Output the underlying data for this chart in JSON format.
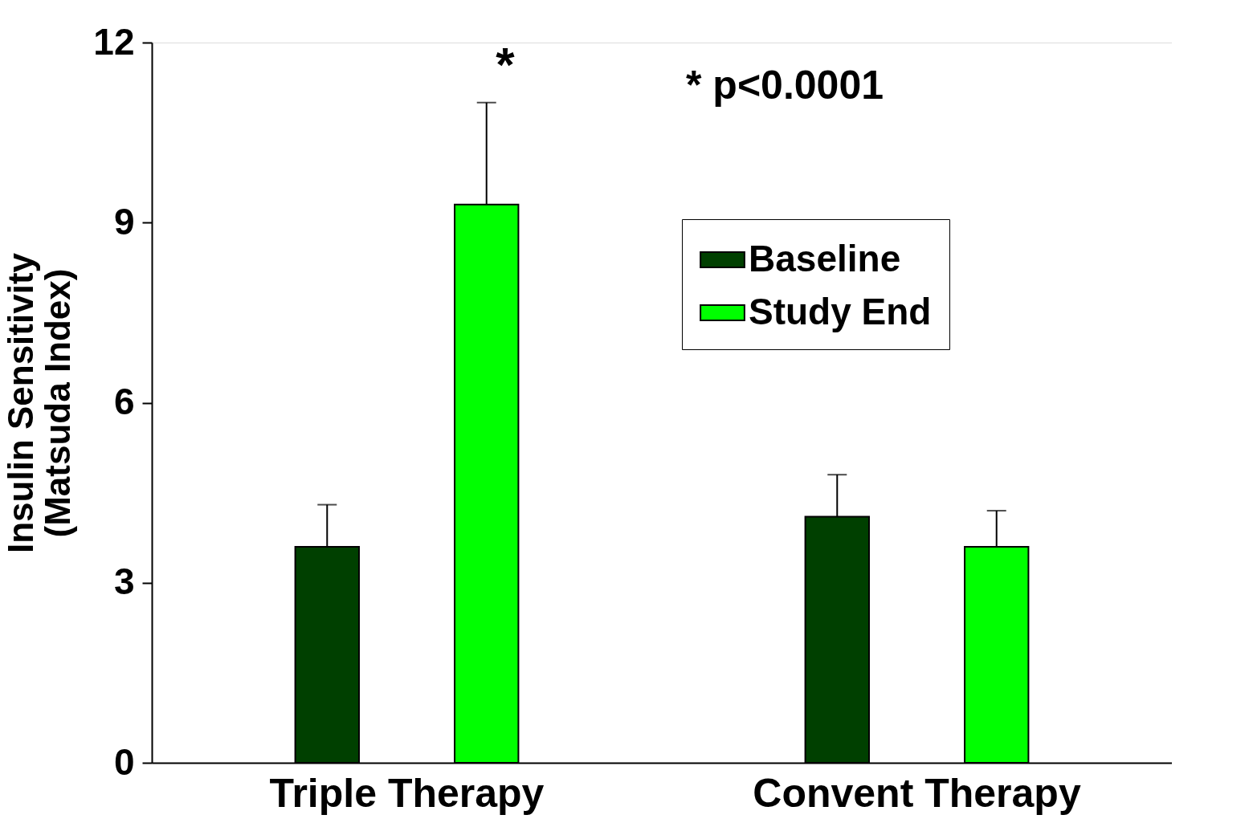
{
  "chart_data": {
    "type": "bar",
    "ylabel": "Insulin Sensitivity\n(Matsuda Index)",
    "categories": [
      "Triple Therapy",
      "Convent Therapy"
    ],
    "series": [
      {
        "name": "Baseline",
        "color": "#004000",
        "values": [
          3.6,
          4.1
        ],
        "errors": [
          [
            3.6,
            4.3
          ],
          [
            4.1,
            4.8
          ]
        ]
      },
      {
        "name": "Study End",
        "color": "#00ff00",
        "values": [
          9.3,
          3.6
        ],
        "errors": [
          [
            9.3,
            11.0
          ],
          [
            3.6,
            4.2
          ]
        ]
      }
    ],
    "ylim": [
      0,
      12
    ],
    "yticks": [
      0,
      3,
      6,
      9,
      12
    ],
    "grid": false,
    "legend": "top right",
    "annotations": [
      "*",
      "* p<0.0001"
    ]
  }
}
